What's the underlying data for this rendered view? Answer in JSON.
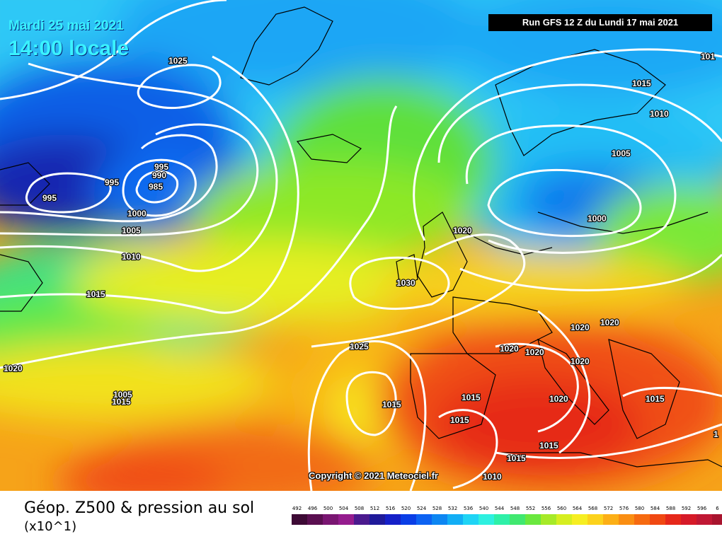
{
  "map": {
    "date_line": "Mardi 25 mai 2021",
    "time_line": "14:00 locale",
    "run_label": "Run GFS 12 Z du Lundi 17 mai 2021",
    "copyright": "Copyright © 2021 Meteociel.fr",
    "isobar_labels": {
      "a": "1025",
      "b": "995",
      "c": "995",
      "d": "995",
      "e": "990",
      "f": "985",
      "g": "1000",
      "h": "1005",
      "i": "1010",
      "j": "1015",
      "k": "1020",
      "l": "1005",
      "m": "1025",
      "n": "1030",
      "o": "1020",
      "p": "1015",
      "q": "1010",
      "r": "1005",
      "s": "1000",
      "t": "1015",
      "u": "1015",
      "v": "1015",
      "w": "1015",
      "x": "1020",
      "y": "1020",
      "z": "1020",
      "aa": "1020",
      "ab": "1020",
      "ac": "1020",
      "ad": "1015",
      "ae": "1015",
      "af": "1015",
      "ag": "1010",
      "ah": "101",
      "ai": "1"
    }
  },
  "legend": {
    "title": "Géop. Z500 & pression au sol",
    "subtitle": "(x10^1)",
    "scale_values": [
      "492",
      "496",
      "500",
      "504",
      "508",
      "512",
      "516",
      "520",
      "524",
      "528",
      "532",
      "536",
      "540",
      "544",
      "548",
      "552",
      "556",
      "560",
      "564",
      "568",
      "572",
      "576",
      "580",
      "584",
      "588",
      "592",
      "596",
      "6"
    ],
    "scale_colors": [
      "#3d0a35",
      "#5a0f50",
      "#7a1672",
      "#951c8e",
      "#4b1a8e",
      "#1f1a9a",
      "#1520c8",
      "#0a3ee6",
      "#0d62f2",
      "#0d86f2",
      "#12aef5",
      "#1fd4f5",
      "#2ef0e0",
      "#2ef0a8",
      "#40e870",
      "#6ae83e",
      "#a6ea28",
      "#d6ee20",
      "#f6ee22",
      "#fcd21c",
      "#fcaf16",
      "#fa8e12",
      "#f66a10",
      "#f04812",
      "#e6281a",
      "#d61a28",
      "#c01834",
      "#a8142e"
    ]
  }
}
